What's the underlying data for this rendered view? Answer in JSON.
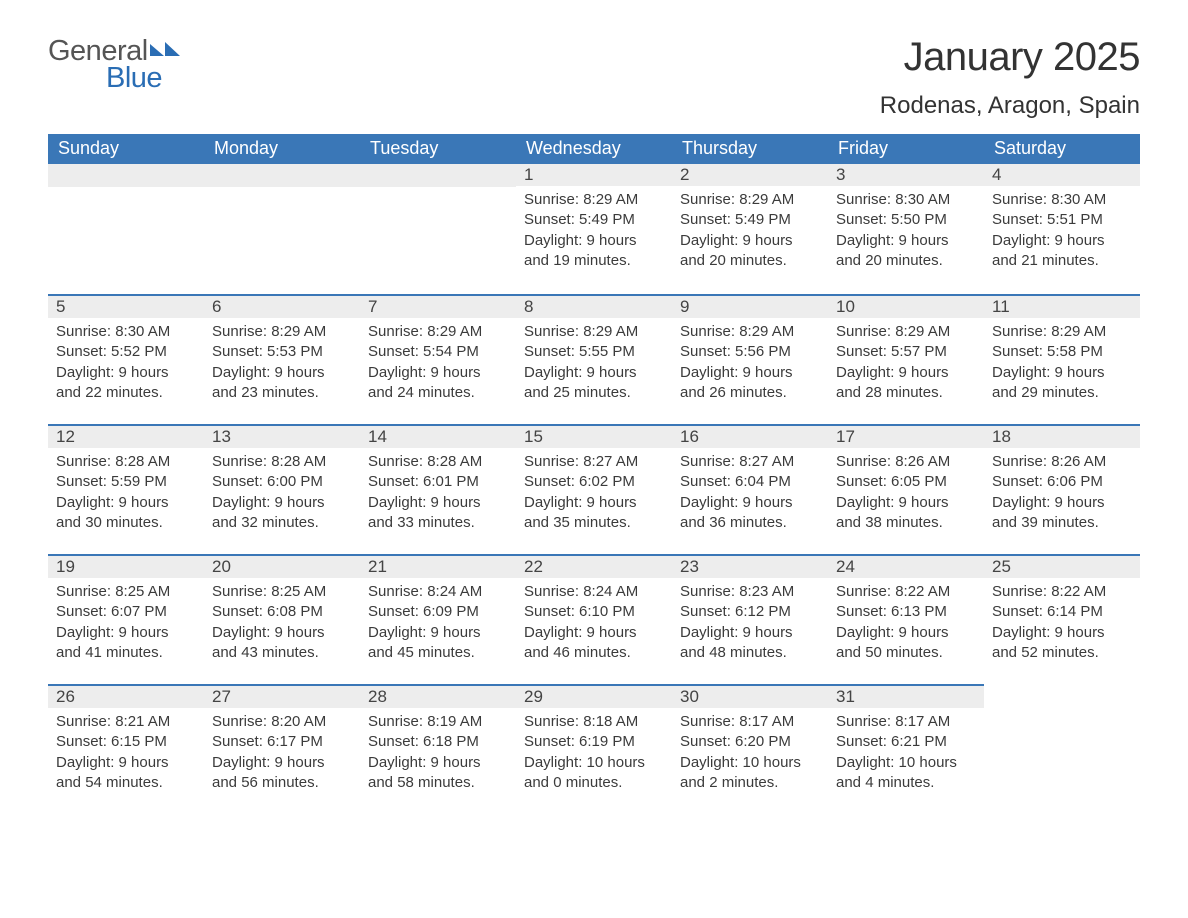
{
  "logo": {
    "general": "General",
    "blue": "Blue",
    "tri_color": "#2a6db4"
  },
  "title": "January 2025",
  "location": "Rodenas, Aragon, Spain",
  "colors": {
    "header_bg": "#3a77b7",
    "header_text": "#ffffff",
    "daybar_bg": "#ededed",
    "daybar_border": "#3a77b7",
    "body_text": "#3b3b3b"
  },
  "day_labels": [
    "Sunday",
    "Monday",
    "Tuesday",
    "Wednesday",
    "Thursday",
    "Friday",
    "Saturday"
  ],
  "weeks": [
    [
      null,
      null,
      null,
      {
        "n": "1",
        "sunrise": "Sunrise: 8:29 AM",
        "sunset": "Sunset: 5:49 PM",
        "day1": "Daylight: 9 hours",
        "day2": "and 19 minutes."
      },
      {
        "n": "2",
        "sunrise": "Sunrise: 8:29 AM",
        "sunset": "Sunset: 5:49 PM",
        "day1": "Daylight: 9 hours",
        "day2": "and 20 minutes."
      },
      {
        "n": "3",
        "sunrise": "Sunrise: 8:30 AM",
        "sunset": "Sunset: 5:50 PM",
        "day1": "Daylight: 9 hours",
        "day2": "and 20 minutes."
      },
      {
        "n": "4",
        "sunrise": "Sunrise: 8:30 AM",
        "sunset": "Sunset: 5:51 PM",
        "day1": "Daylight: 9 hours",
        "day2": "and 21 minutes."
      }
    ],
    [
      {
        "n": "5",
        "sunrise": "Sunrise: 8:30 AM",
        "sunset": "Sunset: 5:52 PM",
        "day1": "Daylight: 9 hours",
        "day2": "and 22 minutes."
      },
      {
        "n": "6",
        "sunrise": "Sunrise: 8:29 AM",
        "sunset": "Sunset: 5:53 PM",
        "day1": "Daylight: 9 hours",
        "day2": "and 23 minutes."
      },
      {
        "n": "7",
        "sunrise": "Sunrise: 8:29 AM",
        "sunset": "Sunset: 5:54 PM",
        "day1": "Daylight: 9 hours",
        "day2": "and 24 minutes."
      },
      {
        "n": "8",
        "sunrise": "Sunrise: 8:29 AM",
        "sunset": "Sunset: 5:55 PM",
        "day1": "Daylight: 9 hours",
        "day2": "and 25 minutes."
      },
      {
        "n": "9",
        "sunrise": "Sunrise: 8:29 AM",
        "sunset": "Sunset: 5:56 PM",
        "day1": "Daylight: 9 hours",
        "day2": "and 26 minutes."
      },
      {
        "n": "10",
        "sunrise": "Sunrise: 8:29 AM",
        "sunset": "Sunset: 5:57 PM",
        "day1": "Daylight: 9 hours",
        "day2": "and 28 minutes."
      },
      {
        "n": "11",
        "sunrise": "Sunrise: 8:29 AM",
        "sunset": "Sunset: 5:58 PM",
        "day1": "Daylight: 9 hours",
        "day2": "and 29 minutes."
      }
    ],
    [
      {
        "n": "12",
        "sunrise": "Sunrise: 8:28 AM",
        "sunset": "Sunset: 5:59 PM",
        "day1": "Daylight: 9 hours",
        "day2": "and 30 minutes."
      },
      {
        "n": "13",
        "sunrise": "Sunrise: 8:28 AM",
        "sunset": "Sunset: 6:00 PM",
        "day1": "Daylight: 9 hours",
        "day2": "and 32 minutes."
      },
      {
        "n": "14",
        "sunrise": "Sunrise: 8:28 AM",
        "sunset": "Sunset: 6:01 PM",
        "day1": "Daylight: 9 hours",
        "day2": "and 33 minutes."
      },
      {
        "n": "15",
        "sunrise": "Sunrise: 8:27 AM",
        "sunset": "Sunset: 6:02 PM",
        "day1": "Daylight: 9 hours",
        "day2": "and 35 minutes."
      },
      {
        "n": "16",
        "sunrise": "Sunrise: 8:27 AM",
        "sunset": "Sunset: 6:04 PM",
        "day1": "Daylight: 9 hours",
        "day2": "and 36 minutes."
      },
      {
        "n": "17",
        "sunrise": "Sunrise: 8:26 AM",
        "sunset": "Sunset: 6:05 PM",
        "day1": "Daylight: 9 hours",
        "day2": "and 38 minutes."
      },
      {
        "n": "18",
        "sunrise": "Sunrise: 8:26 AM",
        "sunset": "Sunset: 6:06 PM",
        "day1": "Daylight: 9 hours",
        "day2": "and 39 minutes."
      }
    ],
    [
      {
        "n": "19",
        "sunrise": "Sunrise: 8:25 AM",
        "sunset": "Sunset: 6:07 PM",
        "day1": "Daylight: 9 hours",
        "day2": "and 41 minutes."
      },
      {
        "n": "20",
        "sunrise": "Sunrise: 8:25 AM",
        "sunset": "Sunset: 6:08 PM",
        "day1": "Daylight: 9 hours",
        "day2": "and 43 minutes."
      },
      {
        "n": "21",
        "sunrise": "Sunrise: 8:24 AM",
        "sunset": "Sunset: 6:09 PM",
        "day1": "Daylight: 9 hours",
        "day2": "and 45 minutes."
      },
      {
        "n": "22",
        "sunrise": "Sunrise: 8:24 AM",
        "sunset": "Sunset: 6:10 PM",
        "day1": "Daylight: 9 hours",
        "day2": "and 46 minutes."
      },
      {
        "n": "23",
        "sunrise": "Sunrise: 8:23 AM",
        "sunset": "Sunset: 6:12 PM",
        "day1": "Daylight: 9 hours",
        "day2": "and 48 minutes."
      },
      {
        "n": "24",
        "sunrise": "Sunrise: 8:22 AM",
        "sunset": "Sunset: 6:13 PM",
        "day1": "Daylight: 9 hours",
        "day2": "and 50 minutes."
      },
      {
        "n": "25",
        "sunrise": "Sunrise: 8:22 AM",
        "sunset": "Sunset: 6:14 PM",
        "day1": "Daylight: 9 hours",
        "day2": "and 52 minutes."
      }
    ],
    [
      {
        "n": "26",
        "sunrise": "Sunrise: 8:21 AM",
        "sunset": "Sunset: 6:15 PM",
        "day1": "Daylight: 9 hours",
        "day2": "and 54 minutes."
      },
      {
        "n": "27",
        "sunrise": "Sunrise: 8:20 AM",
        "sunset": "Sunset: 6:17 PM",
        "day1": "Daylight: 9 hours",
        "day2": "and 56 minutes."
      },
      {
        "n": "28",
        "sunrise": "Sunrise: 8:19 AM",
        "sunset": "Sunset: 6:18 PM",
        "day1": "Daylight: 9 hours",
        "day2": "and 58 minutes."
      },
      {
        "n": "29",
        "sunrise": "Sunrise: 8:18 AM",
        "sunset": "Sunset: 6:19 PM",
        "day1": "Daylight: 10 hours",
        "day2": "and 0 minutes."
      },
      {
        "n": "30",
        "sunrise": "Sunrise: 8:17 AM",
        "sunset": "Sunset: 6:20 PM",
        "day1": "Daylight: 10 hours",
        "day2": "and 2 minutes."
      },
      {
        "n": "31",
        "sunrise": "Sunrise: 8:17 AM",
        "sunset": "Sunset: 6:21 PM",
        "day1": "Daylight: 10 hours",
        "day2": "and 4 minutes."
      },
      null
    ]
  ]
}
